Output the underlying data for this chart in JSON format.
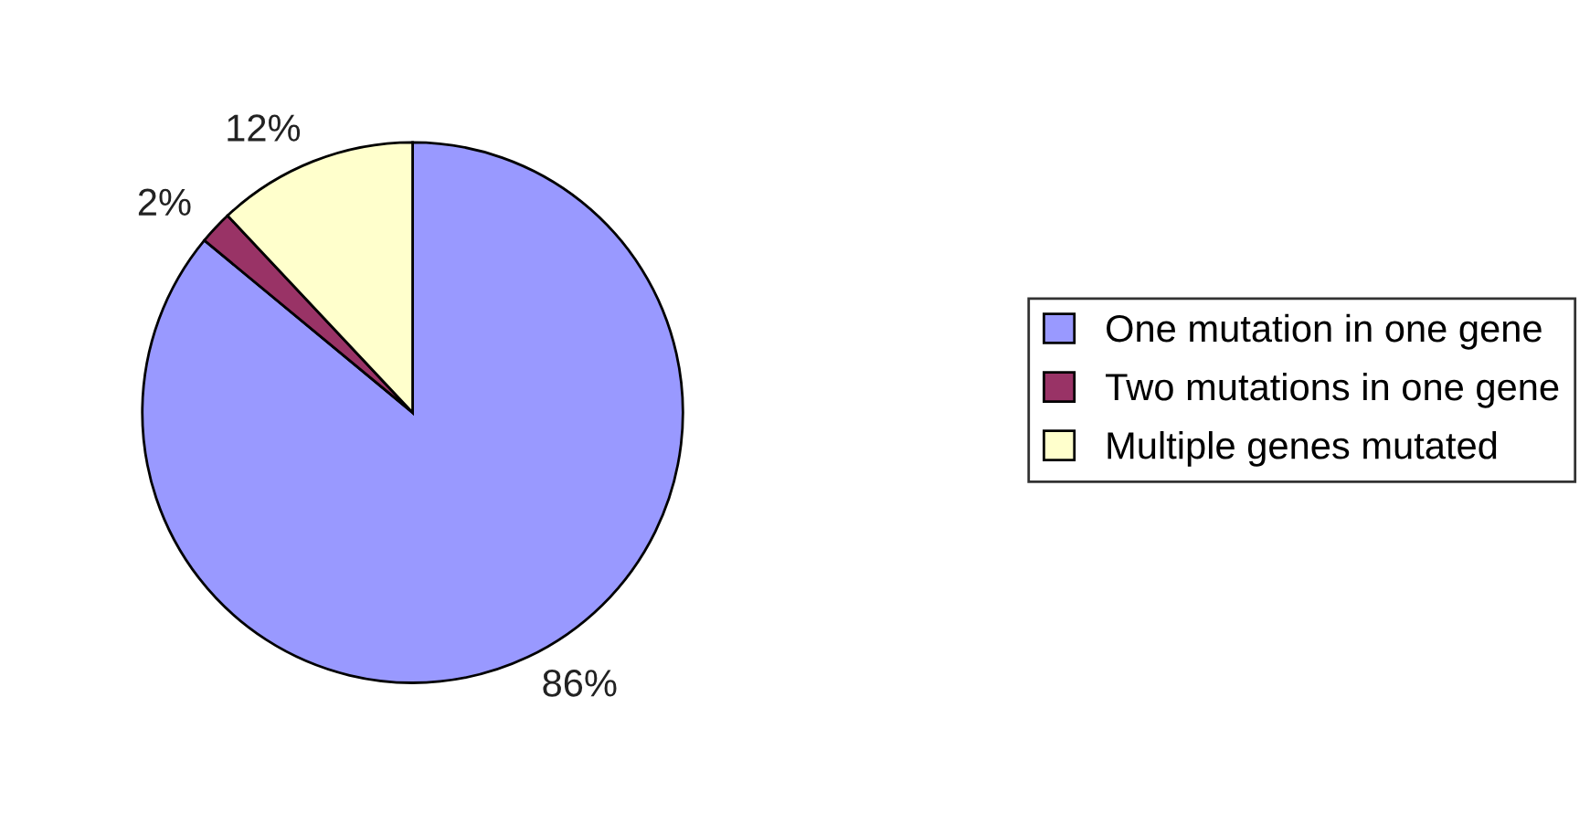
{
  "chart_data": {
    "type": "pie",
    "categories": [
      "One mutation in one gene",
      "Two mutations in one gene",
      "Multiple genes mutated"
    ],
    "values": [
      86,
      2,
      12
    ],
    "colors": [
      "#9999ff",
      "#993366",
      "#ffffcc"
    ],
    "value_labels": [
      "86%",
      "2%",
      "12%"
    ],
    "legend": "right"
  }
}
